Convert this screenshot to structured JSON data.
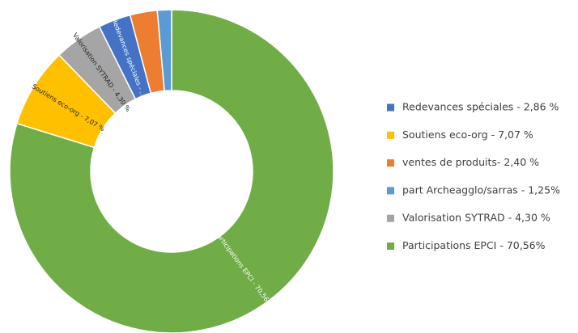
{
  "chart_data": {
    "type": "donut",
    "categories": [
      "Redevances spéciales - 2,86 %",
      "Soutiens eco-org - 7,07 %",
      "ventes de produits- 2,40 %",
      "part Archeagglo/sarras - 1,25%",
      "Valorisation SYTRAD - 4,30 %",
      "Participations EPCI - 70,56%"
    ],
    "values": [
      2.86,
      7.07,
      2.4,
      1.25,
      4.3,
      70.56
    ],
    "colors": [
      "#4472c4",
      "#ffc000",
      "#ed7d31",
      "#5b9bd5",
      "#a5a5a5",
      "#70ad47"
    ],
    "slice_labels": [
      "Redevances spéciales - ...",
      "Soutiens eco-org - 7,07 %",
      null,
      null,
      "Valorisation SYTRAD - 4,30 %",
      "Participations EPCI - 70,56%"
    ],
    "legend": "right"
  }
}
